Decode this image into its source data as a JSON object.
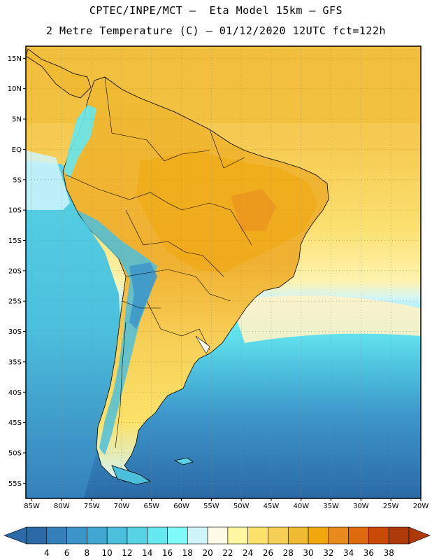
{
  "header": {
    "title_line1": "CPTEC/INPE/MCT –  Eta Model 15km – GFS",
    "title_line2": "2 Metre Temperature (C) – 01/12/2020 12UTC fct=122h"
  },
  "map": {
    "region": "South America",
    "variable": "2 Metre Temperature",
    "units": "C",
    "lat_labels": [
      "15N",
      "10N",
      "5N",
      "EQ",
      "5S",
      "10S",
      "15S",
      "20S",
      "25S",
      "30S",
      "35S",
      "40S",
      "45S",
      "50S",
      "55S"
    ],
    "lat_values": [
      15,
      10,
      5,
      0,
      -5,
      -10,
      -15,
      -20,
      -25,
      -30,
      -35,
      -40,
      -45,
      -50,
      -55
    ],
    "lon_labels": [
      "85W",
      "80W",
      "75W",
      "70W",
      "65W",
      "60W",
      "55W",
      "50W",
      "45W",
      "40W",
      "35W",
      "30W",
      "25W",
      "20W"
    ],
    "lon_values": [
      -85,
      -80,
      -75,
      -70,
      -65,
      -60,
      -55,
      -50,
      -45,
      -40,
      -35,
      -30,
      -25,
      -20
    ],
    "lat_range": [
      -57.5,
      17
    ],
    "lon_range": [
      -86,
      -20
    ]
  },
  "colorbar": {
    "labels": [
      "4",
      "6",
      "8",
      "10",
      "12",
      "14",
      "16",
      "18",
      "20",
      "22",
      "24",
      "26",
      "28",
      "30",
      "32",
      "34",
      "36",
      "38"
    ],
    "colors": [
      "#2b6aa6",
      "#3580bb",
      "#3c95c9",
      "#41a7d2",
      "#4cbfdd",
      "#57d3e5",
      "#66e8f0",
      "#7ffafb",
      "#cff5fb",
      "#fffbe6",
      "#fff7a2",
      "#fce26a",
      "#f7cf56",
      "#f0bb33",
      "#f0a80c",
      "#e98a1e",
      "#df6a0e",
      "#c94a06",
      "#ae3a0a"
    ],
    "left_arrow_color": "#2b6aa6",
    "right_arrow_color": "#ae3a0a"
  }
}
